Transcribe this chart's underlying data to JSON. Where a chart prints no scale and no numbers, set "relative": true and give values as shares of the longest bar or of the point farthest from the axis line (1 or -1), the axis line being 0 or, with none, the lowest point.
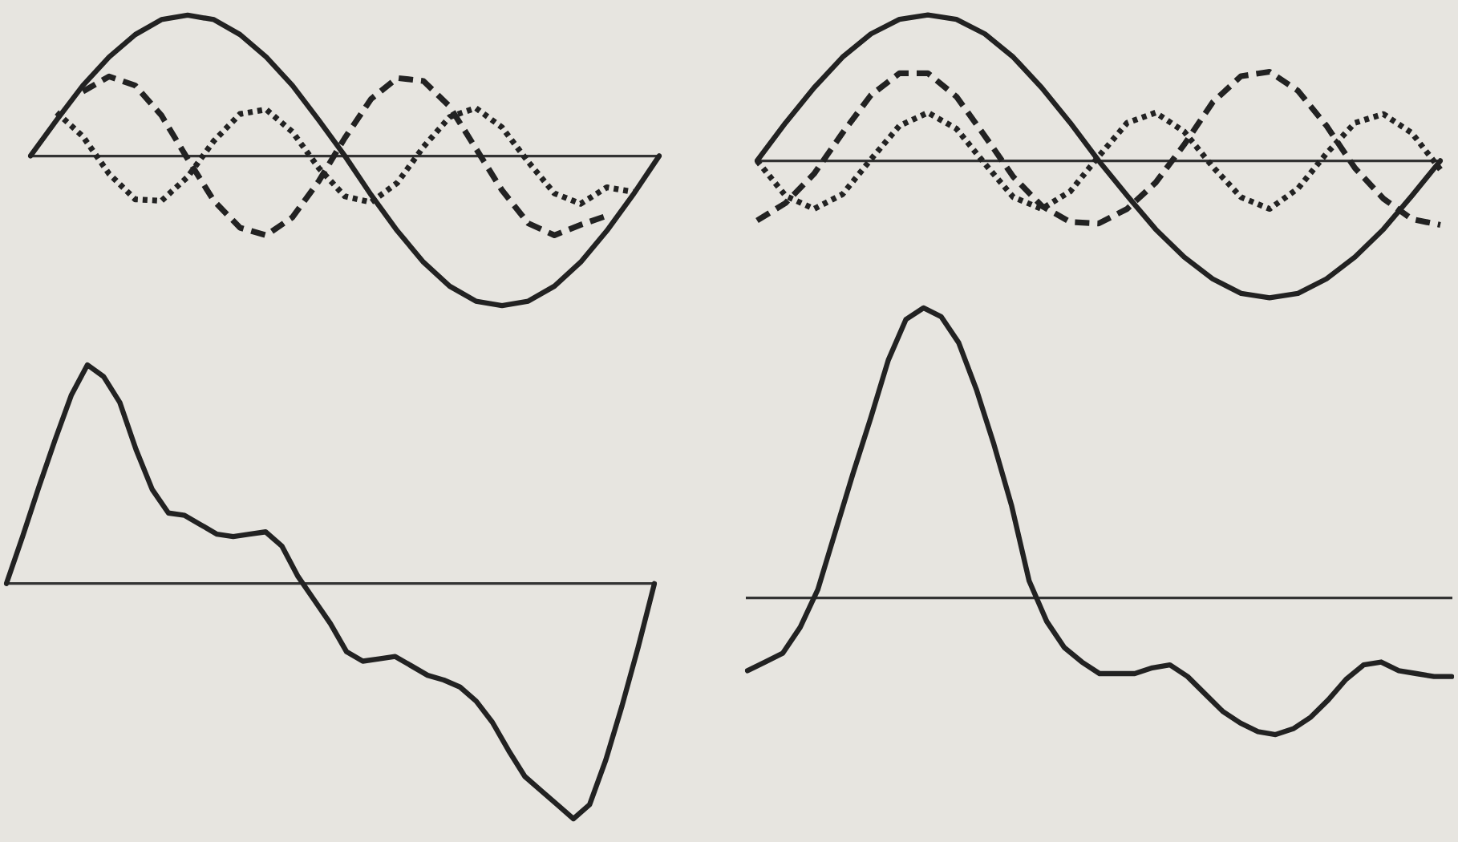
{
  "chart_data": [
    {
      "type": "line",
      "relative": true,
      "grid": false,
      "legend": false,
      "categories": [
        null,
        null,
        null,
        null,
        null,
        null,
        null,
        null,
        null,
        null,
        null,
        null,
        null,
        null,
        null,
        null,
        null,
        null,
        null,
        null,
        null,
        null,
        null,
        null,
        null
      ],
      "series": [
        {
          "color": "#222222",
          "line_style": "solid",
          "values": [
            0,
            0.24,
            0.47,
            0.66,
            0.81,
            0.91,
            0.94,
            0.91,
            0.81,
            0.66,
            0.47,
            0.24,
            0,
            -0.26,
            -0.5,
            -0.71,
            -0.87,
            -0.97,
            -1,
            -0.97,
            -0.87,
            -0.71,
            -0.5,
            -0.26,
            0
          ]
        },
        {
          "color": "#222222",
          "line_style": "dashed",
          "values": [
            null,
            null,
            0.43,
            0.53,
            0.47,
            0.27,
            -0.02,
            -0.3,
            -0.48,
            -0.53,
            -0.41,
            -0.17,
            0.12,
            0.38,
            0.52,
            0.5,
            0.33,
            0.05,
            -0.23,
            -0.45,
            -0.53,
            -0.46,
            -0.4,
            null,
            null
          ]
        },
        {
          "color": "#222222",
          "line_style": "dotted",
          "values": [
            null,
            0.29,
            0.13,
            -0.12,
            -0.29,
            -0.3,
            -0.14,
            0.1,
            0.28,
            0.31,
            0.16,
            -0.08,
            -0.27,
            -0.31,
            -0.18,
            0.06,
            0.26,
            0.32,
            0.19,
            -0.04,
            -0.25,
            -0.32,
            -0.21,
            -0.24,
            null
          ]
        }
      ]
    },
    {
      "type": "line",
      "relative": true,
      "grid": false,
      "legend": false,
      "categories": [
        null,
        null,
        null,
        null,
        null,
        null,
        null,
        null,
        null,
        null,
        null,
        null,
        null,
        null,
        null,
        null,
        null,
        null,
        null,
        null,
        null,
        null,
        null,
        null,
        null
      ],
      "series": [
        {
          "color": "#222222",
          "line_style": "solid",
          "values": [
            0,
            0.26,
            0.5,
            0.71,
            0.87,
            0.97,
            1,
            0.97,
            0.87,
            0.71,
            0.5,
            0.26,
            0,
            -0.24,
            -0.47,
            -0.66,
            -0.81,
            -0.91,
            -0.94,
            -0.91,
            -0.81,
            -0.66,
            -0.47,
            -0.24,
            0
          ]
        },
        {
          "color": "#222222",
          "line_style": "dashed",
          "values": [
            -0.41,
            -0.29,
            -0.09,
            0.19,
            0.45,
            0.6,
            0.6,
            0.44,
            0.17,
            -0.11,
            -0.31,
            -0.42,
            -0.43,
            -0.33,
            -0.15,
            0.11,
            0.4,
            0.58,
            0.61,
            0.48,
            0.24,
            -0.05,
            -0.26,
            -0.4,
            -0.44
          ]
        },
        {
          "color": "#222222",
          "line_style": "dotted",
          "values": [
            0,
            -0.24,
            -0.33,
            -0.23,
            0.01,
            0.24,
            0.33,
            0.22,
            -0.02,
            -0.25,
            -0.33,
            -0.21,
            0.03,
            0.26,
            0.33,
            0.2,
            -0.04,
            -0.25,
            -0.33,
            -0.19,
            0.05,
            0.26,
            0.32,
            0.19,
            -0.06
          ]
        }
      ]
    },
    {
      "type": "line",
      "relative": true,
      "grid": false,
      "legend": false,
      "categories": [
        null,
        null,
        null,
        null,
        null,
        null,
        null,
        null,
        null,
        null,
        null,
        null,
        null,
        null,
        null,
        null,
        null,
        null,
        null,
        null,
        null,
        null,
        null,
        null,
        null,
        null,
        null,
        null,
        null,
        null,
        null,
        null,
        null,
        null,
        null,
        null,
        null,
        null,
        null,
        null,
        null
      ],
      "series": [
        {
          "color": "#222222",
          "line_style": "solid",
          "values": [
            0,
            0.2,
            0.41,
            0.61,
            0.8,
            0.93,
            0.88,
            0.77,
            0.57,
            0.4,
            0.3,
            0.29,
            0.25,
            0.21,
            0.2,
            0.21,
            0.22,
            0.16,
            0.03,
            -0.07,
            -0.17,
            -0.29,
            -0.33,
            -0.32,
            -0.31,
            -0.35,
            -0.39,
            -0.41,
            -0.44,
            -0.5,
            -0.59,
            -0.71,
            -0.82,
            -0.88,
            -0.94,
            -1,
            -0.94,
            -0.75,
            -0.52,
            -0.27,
            0
          ]
        }
      ]
    },
    {
      "type": "line",
      "relative": true,
      "grid": false,
      "legend": false,
      "categories": [
        null,
        null,
        null,
        null,
        null,
        null,
        null,
        null,
        null,
        null,
        null,
        null,
        null,
        null,
        null,
        null,
        null,
        null,
        null,
        null,
        null,
        null,
        null,
        null,
        null,
        null,
        null,
        null,
        null,
        null,
        null,
        null,
        null,
        null,
        null,
        null,
        null,
        null,
        null,
        null,
        null
      ],
      "series": [
        {
          "color": "#222222",
          "line_style": "solid",
          "values": [
            -0.25,
            -0.22,
            -0.19,
            -0.1,
            0.03,
            0.23,
            0.43,
            0.62,
            0.82,
            0.96,
            1,
            0.97,
            0.88,
            0.72,
            0.53,
            0.32,
            0.06,
            -0.08,
            -0.17,
            -0.22,
            -0.26,
            -0.26,
            -0.26,
            -0.24,
            -0.23,
            -0.27,
            -0.33,
            -0.39,
            -0.43,
            -0.46,
            -0.47,
            -0.45,
            -0.41,
            -0.35,
            -0.28,
            -0.23,
            -0.22,
            -0.25,
            -0.26,
            -0.27,
            -0.27
          ]
        }
      ]
    }
  ]
}
